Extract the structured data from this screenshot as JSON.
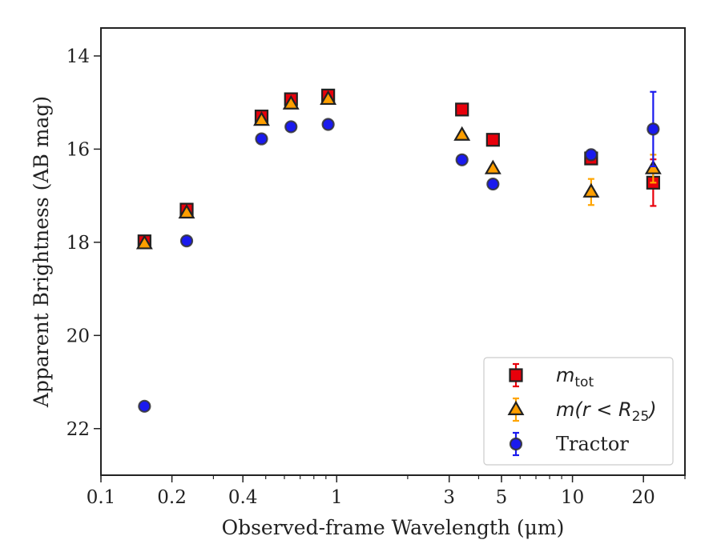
{
  "chart_data": {
    "type": "scatter",
    "xlabel": "Observed-frame Wavelength (μm)",
    "ylabel": "Apparent Brightness (AB mag)",
    "xscale": "log",
    "xlim": [
      0.1,
      30
    ],
    "ylim": [
      23,
      13.4
    ],
    "y_inverted": true,
    "grid": false,
    "legend_position": "lower-right",
    "x_ticks": [
      {
        "value": 0.1,
        "label": "0.1"
      },
      {
        "value": 0.2,
        "label": "0.2"
      },
      {
        "value": 0.4,
        "label": "0.4"
      },
      {
        "value": 1,
        "label": "1"
      },
      {
        "value": 3,
        "label": "3"
      },
      {
        "value": 5,
        "label": "5"
      },
      {
        "value": 10,
        "label": "10"
      },
      {
        "value": 20,
        "label": "20"
      }
    ],
    "y_ticks": [
      {
        "value": 14,
        "label": "14"
      },
      {
        "value": 16,
        "label": "16"
      },
      {
        "value": 18,
        "label": "18"
      },
      {
        "value": 20,
        "label": "20"
      },
      {
        "value": 22,
        "label": "22"
      }
    ],
    "series": [
      {
        "name": "m_tot",
        "legend_main": "m",
        "legend_sub": "tot",
        "marker": "square",
        "color": "#e8000b",
        "error_color": "#e8000b",
        "x": [
          0.153,
          0.231,
          0.48,
          0.64,
          0.92,
          3.4,
          4.6,
          12,
          22
        ],
        "y": [
          17.98,
          17.3,
          15.3,
          14.93,
          14.85,
          15.15,
          15.8,
          16.2,
          16.72
        ],
        "yerr": [
          0.06,
          0.06,
          0.05,
          0.05,
          0.05,
          0.05,
          0.05,
          0.1,
          0.5
        ]
      },
      {
        "name": "m(r < R25)",
        "legend_main": "m(r < R",
        "legend_sub": "25",
        "legend_close": ")",
        "marker": "triangle",
        "color": "#ff9f00",
        "error_color": "#ffa500",
        "x": [
          0.153,
          0.231,
          0.48,
          0.64,
          0.92,
          3.4,
          4.6,
          12,
          22
        ],
        "y": [
          18.03,
          17.37,
          15.38,
          15.03,
          14.93,
          15.7,
          16.42,
          16.92,
          16.42
        ],
        "yerr": [
          0.06,
          0.06,
          0.05,
          0.05,
          0.05,
          0.05,
          0.05,
          0.28,
          0.3
        ]
      },
      {
        "name": "Tractor",
        "legend_main": "Tractor",
        "marker": "circle",
        "color": "#1a1aee",
        "error_color": "#1a1aee",
        "x": [
          0.153,
          0.231,
          0.48,
          0.64,
          0.92,
          3.4,
          4.6,
          12,
          22
        ],
        "y": [
          21.52,
          17.97,
          15.78,
          15.52,
          15.47,
          16.23,
          16.75,
          16.12,
          15.57
        ],
        "yerr": [
          0.06,
          0.06,
          0.05,
          0.05,
          0.05,
          0.05,
          0.05,
          0.1,
          0.8
        ]
      }
    ]
  }
}
